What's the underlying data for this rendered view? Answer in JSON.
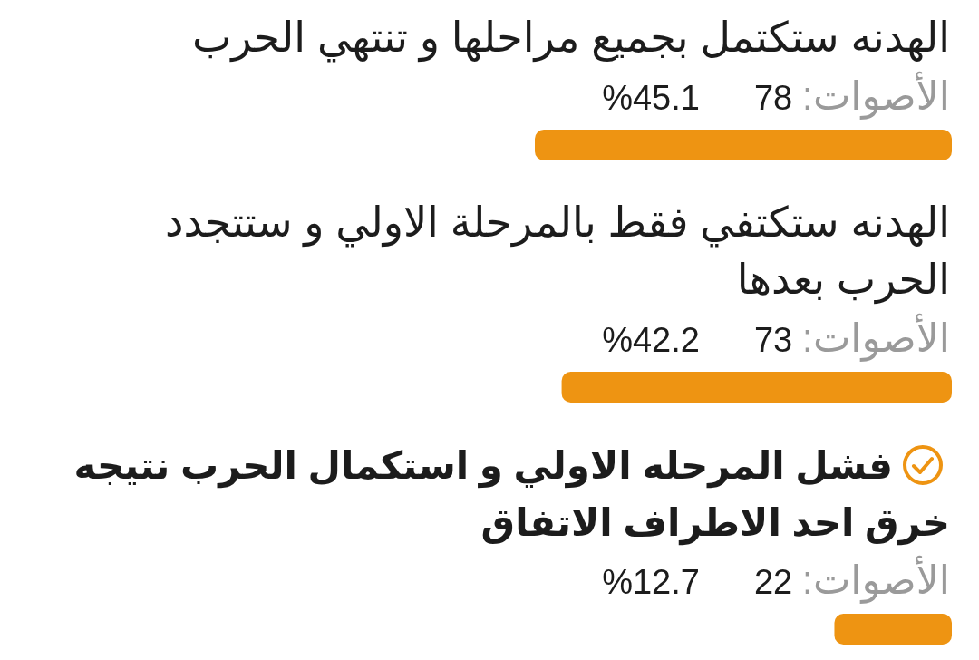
{
  "chart_data": {
    "type": "bar",
    "orientation": "horizontal",
    "categories": [
      "الهدنه ستكتمل بجميع مراحلها و تنتهي الحرب",
      "الهدنه ستكتفي فقط بالمرحلة الاولي و ستتجدد الحرب بعدها",
      "فشل المرحله الاولي و استكمال الحرب نتيجه خرق احد الاطراف الاتفاق"
    ],
    "values": [
      45.1,
      42.2,
      12.7
    ],
    "color": "#ee9412",
    "value_labels": [
      "%45.1",
      "%42.2",
      "%12.7"
    ],
    "annotations": [
      "الأصوات: 78",
      "الأصوات: 73",
      "الأصوات: 22"
    ]
  }
}
